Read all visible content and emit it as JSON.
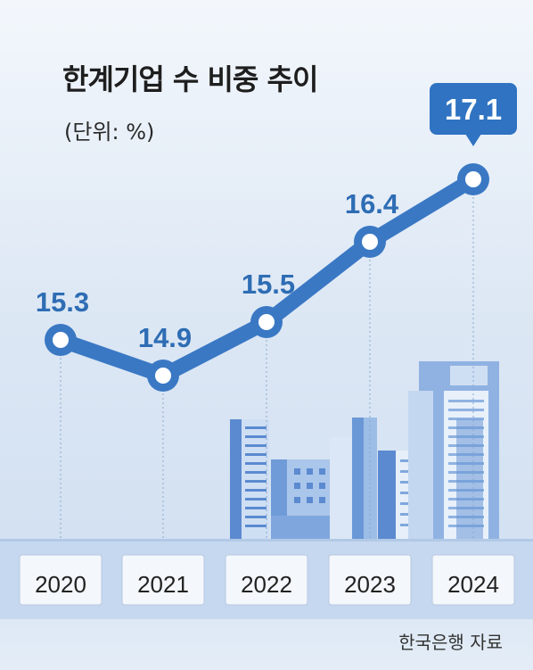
{
  "title": "한계기업 수 비중 추이",
  "unit": "(단위: %)",
  "source": "한국은행 자료",
  "colors": {
    "line": "#3a78c4",
    "label": "#2e6db4",
    "highlight_box": "#2f73c2",
    "highlight_text": "#ffffff"
  },
  "chart_data": {
    "type": "line",
    "title": "한계기업 수 비중 추이",
    "unit": "(단위: %)",
    "x": [
      "2020",
      "2021",
      "2022",
      "2023",
      "2024"
    ],
    "series": [
      {
        "values": [
          15.3,
          14.9,
          15.5,
          16.4,
          17.1
        ]
      }
    ],
    "value_labels": [
      "15.3",
      "14.9",
      "15.5",
      "16.4",
      "17.1"
    ],
    "highlighted_index": 4,
    "grid": false
  }
}
